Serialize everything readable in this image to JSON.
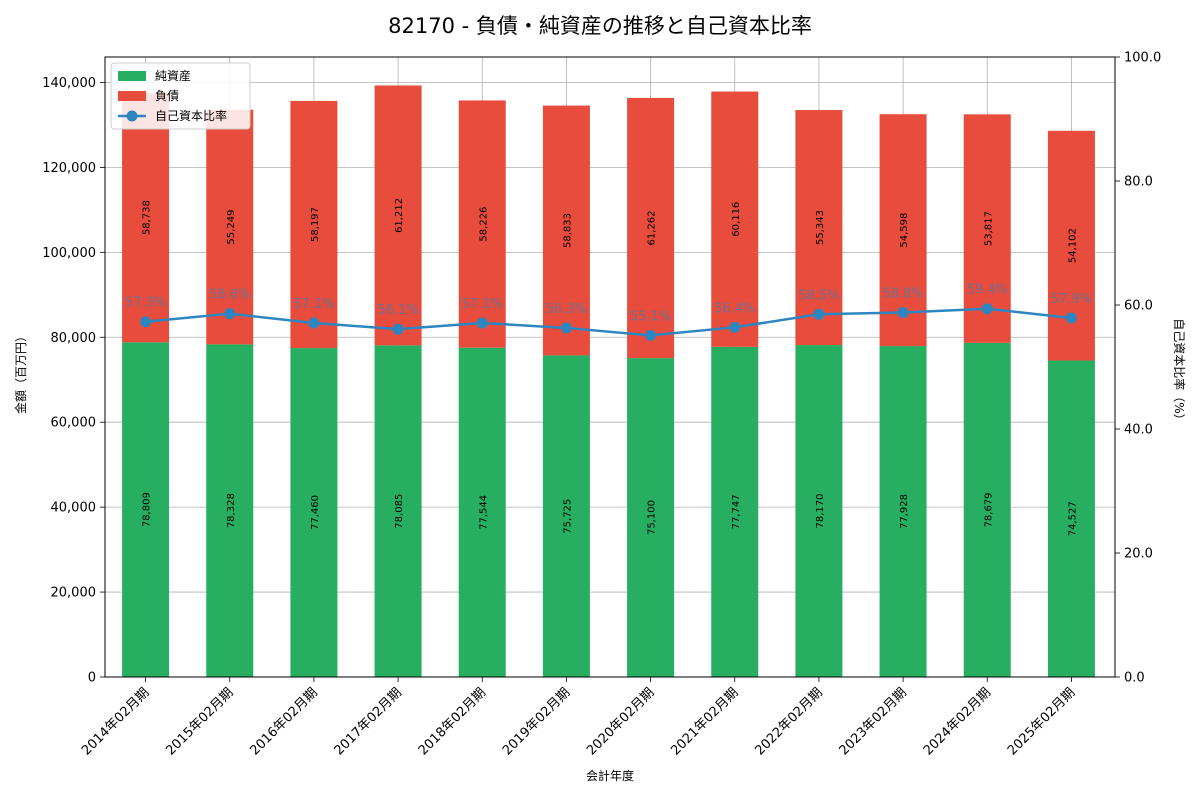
{
  "chart_data": {
    "type": "bar",
    "title": "82170 - 負債・純資産の推移と自己資本比率",
    "xlabel": "会計年度",
    "ylabel": "金額（百万円）",
    "y2label": "自己資本比率（%）",
    "ylim": [
      0,
      146000
    ],
    "y2lim": [
      0,
      100
    ],
    "yticks": [
      "0",
      "20,000",
      "40,000",
      "60,000",
      "80,000",
      "100,000",
      "120,000",
      "140,000"
    ],
    "y2ticks": [
      "0.0",
      "20.0",
      "40.0",
      "60.0",
      "80.0",
      "100.0"
    ],
    "categories": [
      "2014年02月期",
      "2015年02月期",
      "2016年02月期",
      "2017年02月期",
      "2018年02月期",
      "2019年02月期",
      "2020年02月期",
      "2021年02月期",
      "2022年02月期",
      "2023年02月期",
      "2024年02月期",
      "2025年02月期"
    ],
    "series": [
      {
        "name": "純資産",
        "kind": "bar",
        "color": "#27ae60",
        "values": [
          78809,
          78328,
          77460,
          78085,
          77544,
          75725,
          75100,
          77747,
          78170,
          77928,
          78679,
          74527
        ],
        "labels": [
          "78,809",
          "78,328",
          "77,460",
          "78,085",
          "77,544",
          "75,725",
          "75,100",
          "77,747",
          "78,170",
          "77,928",
          "78,679",
          "74,527"
        ]
      },
      {
        "name": "負債",
        "kind": "bar",
        "color": "#e74c3c",
        "values": [
          58738,
          55249,
          58197,
          61212,
          58226,
          58833,
          61262,
          60116,
          55343,
          54598,
          53817,
          54102
        ],
        "labels": [
          "58,738",
          "55,249",
          "58,197",
          "61,212",
          "58,226",
          "58,833",
          "61,262",
          "60,116",
          "55,343",
          "54,598",
          "53,817",
          "54,102"
        ]
      },
      {
        "name": "自己資本比率",
        "kind": "line",
        "axis": "right",
        "color": "#2e86c1",
        "values": [
          57.3,
          58.6,
          57.1,
          56.1,
          57.1,
          56.3,
          55.1,
          56.4,
          58.5,
          58.8,
          59.4,
          57.9
        ],
        "labels": [
          "57.3%",
          "58.6%",
          "57.1%",
          "56.1%",
          "57.1%",
          "56.3%",
          "55.1%",
          "56.4%",
          "58.5%",
          "58.8%",
          "59.4%",
          "57.9%"
        ]
      }
    ],
    "legend": [
      "純資産",
      "負債",
      "自己資本比率"
    ],
    "legend_position": "top-left",
    "grid": true
  }
}
